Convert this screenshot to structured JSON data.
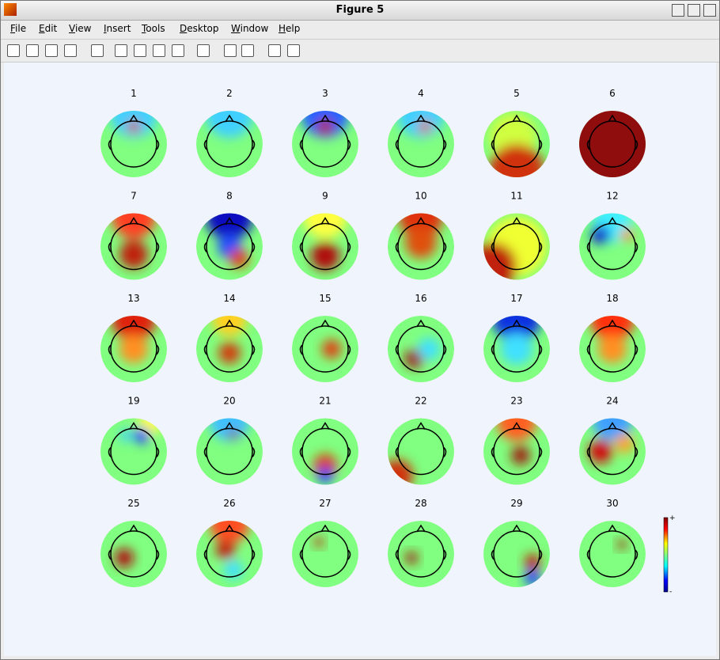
{
  "window": {
    "title": "Figure 5",
    "menu": [
      "File",
      "Edit",
      "View",
      "Insert",
      "Tools",
      "Desktop",
      "Window",
      "Help"
    ]
  },
  "figure": {
    "plots": [
      "1",
      "2",
      "3",
      "4",
      "5",
      "6",
      "7",
      "8",
      "9",
      "10",
      "11",
      "12",
      "13",
      "14",
      "15",
      "16",
      "17",
      "18",
      "19",
      "20",
      "21",
      "22",
      "23",
      "24",
      "25",
      "26",
      "27",
      "28",
      "29",
      "30"
    ],
    "colorbar": {
      "max_label": "+",
      "min_label": "-"
    }
  }
}
